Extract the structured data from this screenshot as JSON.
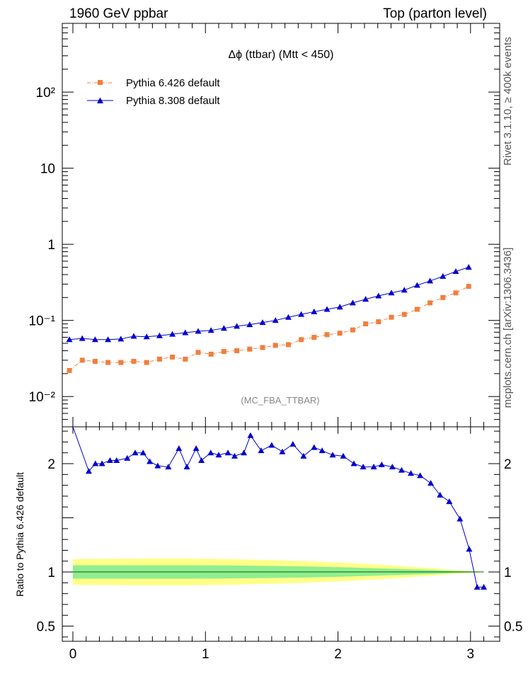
{
  "header": {
    "left": "1960 GeV ppbar",
    "right": "Top (parton level)"
  },
  "side": {
    "rivet": "Rivet 3.1.10, ≥ 400k events",
    "mcplots": "mcplots.cern.ch [arXiv:1306.3436]"
  },
  "colors": {
    "pythia6": "#f07f3c",
    "pythia8": "#0000cc",
    "band_outer": "#ffff88",
    "band_inner": "#90ee90",
    "ratio_line": "#006400",
    "label_gray": "#888888"
  },
  "chart_data": [
    {
      "type": "scatter",
      "title": "Δϕ (ttbar) (Mtt < 450)",
      "analysis_label": "(MC_FBA_TTBAR)",
      "xlabel": "",
      "ylabel": "",
      "log_y": true,
      "xlim": [
        -0.08,
        3.22
      ],
      "ylim": [
        0.004,
        800
      ],
      "y_ticks": [
        {
          "value": 0.01,
          "label": "10⁻²"
        },
        {
          "value": 0.1,
          "label": "10⁻¹"
        },
        {
          "value": 1,
          "label": "1"
        },
        {
          "value": 10,
          "label": "10"
        },
        {
          "value": 100,
          "label": "10²"
        }
      ],
      "legend_position": "top-left",
      "x": [
        0.0524,
        0.1571,
        0.2618,
        0.3665,
        0.4712,
        0.576,
        0.6807,
        0.7854,
        0.8901,
        0.9948,
        1.0996,
        1.2043,
        1.309,
        1.4137,
        1.5184,
        1.6232,
        1.7279,
        1.8326,
        1.9373,
        2.042,
        2.1468,
        2.2515,
        2.3562,
        2.4609,
        2.5656,
        2.6704,
        2.7751,
        2.8798,
        2.9845,
        3.0892,
        3.1939,
        3.2987
      ],
      "x_step": 0.0818,
      "series": [
        {
          "name": "Pythia 6.426 default",
          "marker": "square",
          "values": [
            0.022,
            0.03,
            0.029,
            0.028,
            0.028,
            0.029,
            0.028,
            0.031,
            0.033,
            0.031,
            0.038,
            0.036,
            0.039,
            0.04,
            0.042,
            0.044,
            0.047,
            0.048,
            0.056,
            0.06,
            0.065,
            0.068,
            0.075,
            0.09,
            0.096,
            0.11,
            0.12,
            0.14,
            0.17,
            0.2,
            0.23,
            0.28
          ]
        },
        {
          "name": "Pythia 8.308 default",
          "marker": "triangle",
          "values": [
            0.056,
            0.058,
            0.056,
            0.056,
            0.057,
            0.062,
            0.061,
            0.063,
            0.066,
            0.069,
            0.072,
            0.074,
            0.079,
            0.084,
            0.088,
            0.094,
            0.1,
            0.11,
            0.12,
            0.13,
            0.14,
            0.15,
            0.17,
            0.19,
            0.21,
            0.23,
            0.25,
            0.29,
            0.33,
            0.38,
            0.44,
            0.5
          ]
        }
      ]
    },
    {
      "type": "line",
      "ylabel": "Ratio to Pythia 6.426 default",
      "xlabel": "",
      "xlim": [
        -0.08,
        3.22
      ],
      "ylim": [
        0.36,
        2.34
      ],
      "x_ticks": [
        0,
        1,
        2,
        3
      ],
      "y_ticks": [
        {
          "value": 0.5,
          "label": "0.5"
        },
        {
          "value": 1,
          "label": "1"
        },
        {
          "value": 2,
          "label": "2"
        }
      ],
      "band_x": [
        0,
        0.3,
        0.6,
        0.9,
        1.2,
        1.5,
        1.8,
        2.1,
        2.4,
        2.7,
        2.9,
        3.1
      ],
      "band_inner": [
        0.062,
        0.062,
        0.062,
        0.062,
        0.06,
        0.056,
        0.05,
        0.041,
        0.03,
        0.018,
        0.008,
        0.002
      ],
      "band_outer": [
        0.12,
        0.122,
        0.124,
        0.124,
        0.118,
        0.11,
        0.097,
        0.082,
        0.061,
        0.035,
        0.015,
        0.003
      ],
      "series": [
        {
          "name": "Pythia 8.308 default",
          "x": [
            0.0,
            0.12,
            0.17,
            0.22,
            0.28,
            0.33,
            0.41,
            0.47,
            0.53,
            0.58,
            0.64,
            0.72,
            0.8,
            0.86,
            0.93,
            0.97,
            1.04,
            1.1,
            1.17,
            1.22,
            1.29,
            1.34,
            1.42,
            1.5,
            1.58,
            1.66,
            1.74,
            1.82,
            1.88,
            1.96,
            2.04,
            2.12,
            2.19,
            2.27,
            2.33,
            2.41,
            2.48,
            2.55,
            2.62,
            2.7,
            2.77,
            2.84,
            2.92,
            2.99,
            3.05,
            3.1
          ],
          "values": [
            2.34,
            1.93,
            2.0,
            2.0,
            2.03,
            2.03,
            2.05,
            2.1,
            2.1,
            2.02,
            1.98,
            1.97,
            2.14,
            1.97,
            2.14,
            2.03,
            2.1,
            2.08,
            2.1,
            2.07,
            2.1,
            2.26,
            2.12,
            2.17,
            2.11,
            2.18,
            2.07,
            2.15,
            2.12,
            2.08,
            2.07,
            2.0,
            1.97,
            1.97,
            1.99,
            1.97,
            1.94,
            1.91,
            1.89,
            1.82,
            1.71,
            1.65,
            1.49,
            1.21,
            0.86,
            0.86
          ]
        }
      ]
    }
  ]
}
